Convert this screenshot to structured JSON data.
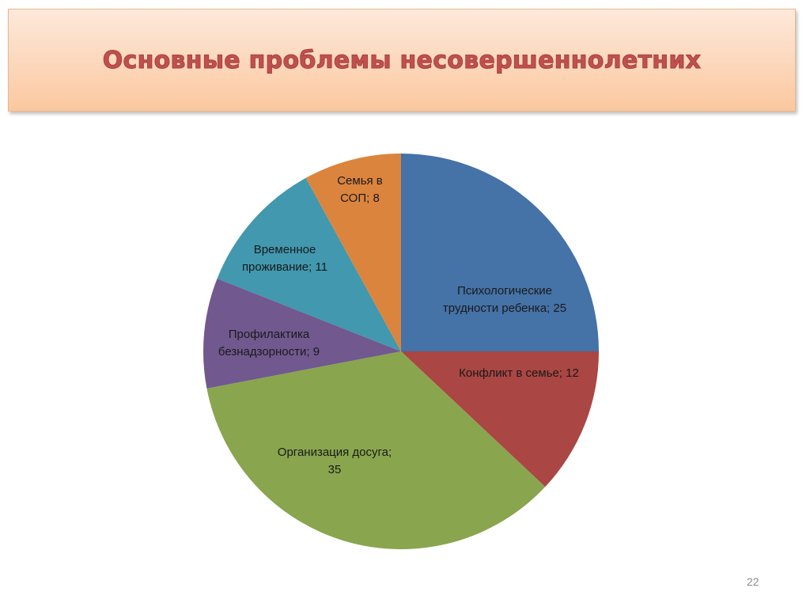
{
  "slide": {
    "title": "Основные проблемы несовершеннолетних",
    "page_number": "22"
  },
  "chart_data": {
    "type": "pie",
    "title": "",
    "start": "12 o'clock, clockwise",
    "slices": [
      {
        "label": "Психологические трудности ребенка",
        "value": 25,
        "color": "#4572a7",
        "label_lines": [
          "Психологические",
          "трудности ребенка; 25"
        ]
      },
      {
        "label": "Конфликт в семье",
        "value": 12,
        "color": "#aa4643",
        "label_lines": [
          "Конфликт в семье; 12"
        ]
      },
      {
        "label": "Организация досуга",
        "value": 35,
        "color": "#89a54e",
        "label_lines": [
          "Организация досуга;",
          "35"
        ]
      },
      {
        "label": "Профилактика безнадзорности",
        "value": 9,
        "color": "#71588f",
        "label_lines": [
          "Профилактика",
          "безнадзорности; 9"
        ]
      },
      {
        "label": "Временное проживание",
        "value": 11,
        "color": "#4198af",
        "label_lines": [
          "Временное",
          "проживание; 11"
        ]
      },
      {
        "label": "Семья в СОП",
        "value": 8,
        "color": "#db843d",
        "label_lines": [
          "Семья в",
          "СОП; 8"
        ]
      }
    ]
  }
}
